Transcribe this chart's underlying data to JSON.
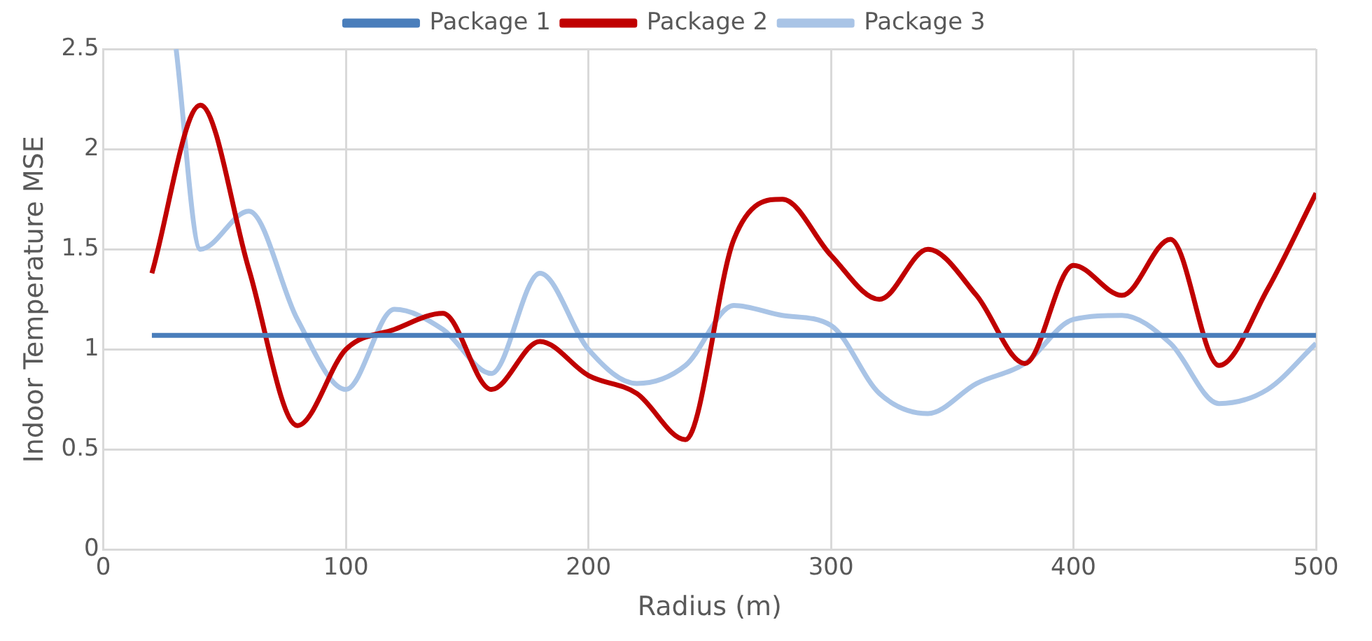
{
  "chart_data": {
    "type": "line",
    "xlabel": "Radius (m)",
    "ylabel": "Indoor Temperature MSE",
    "xlim": [
      0,
      500
    ],
    "xticks": [
      0,
      100,
      200,
      300,
      400,
      500
    ],
    "ylim": [
      0,
      2.5
    ],
    "yticks": [
      0,
      0.5,
      1,
      1.5,
      2,
      2.5
    ],
    "grid": true,
    "legend": "top",
    "marker": "none",
    "line_style": "solid",
    "series": [
      {
        "name": "Package 1",
        "color": "#4a7ebb",
        "x": [
          20,
          500
        ],
        "values": [
          1.07,
          1.07
        ]
      },
      {
        "name": "Package 2",
        "color": "#c00000",
        "x": [
          20,
          40,
          60,
          80,
          100,
          120,
          140,
          160,
          180,
          200,
          220,
          240,
          260,
          280,
          300,
          320,
          340,
          360,
          380,
          400,
          420,
          440,
          460,
          480,
          500
        ],
        "values": [
          1.38,
          2.22,
          1.4,
          0.62,
          1.0,
          1.1,
          1.18,
          0.8,
          1.04,
          0.87,
          0.78,
          0.55,
          1.55,
          1.75,
          1.47,
          1.25,
          1.5,
          1.27,
          0.93,
          1.42,
          1.27,
          1.55,
          0.92,
          1.3,
          1.78
        ]
      },
      {
        "name": "Package 3",
        "color": "#a9c4e6",
        "x": [
          30,
          40,
          60,
          80,
          100,
          120,
          140,
          160,
          180,
          200,
          220,
          240,
          260,
          280,
          300,
          320,
          340,
          360,
          380,
          400,
          420,
          440,
          460,
          480,
          500
        ],
        "values": [
          2.5,
          1.5,
          1.69,
          1.15,
          0.8,
          1.2,
          1.1,
          0.88,
          1.38,
          1.0,
          0.83,
          0.92,
          1.22,
          1.17,
          1.12,
          0.78,
          0.68,
          0.83,
          0.93,
          1.15,
          1.17,
          1.03,
          0.73,
          0.8,
          1.03
        ]
      }
    ]
  }
}
